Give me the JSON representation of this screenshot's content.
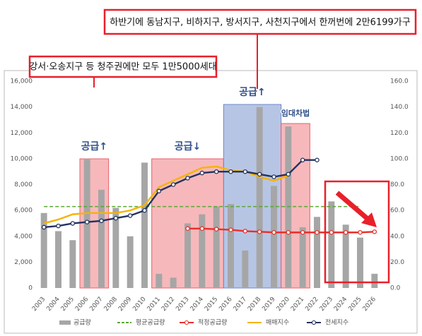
{
  "chart_data": {
    "type": "bar",
    "annotations": [
      "하반기에 동남지구, 비하지구, 방서지구, 사천지구에서 한꺼번에 2만6199가구",
      "강서·오송지구 등 청주권에만 모두 1만5000세대"
    ],
    "categories": [
      "2003",
      "2004",
      "2005",
      "2006",
      "2007",
      "2008",
      "2009",
      "2010",
      "2011",
      "2012",
      "2013",
      "2014",
      "2015",
      "2016",
      "2017",
      "2018",
      "2019",
      "2020",
      "2021",
      "2022",
      "2023",
      "2024",
      "2025",
      "2026"
    ],
    "highlights": [
      {
        "label": "공급↑",
        "from": "2006",
        "to": "2007",
        "color": "#f4a0a4"
      },
      {
        "label": "공급↓",
        "from": "2011",
        "to": "2015",
        "color": "#f4a0a4"
      },
      {
        "label": "공급↑",
        "from": "2016",
        "to": "2019",
        "color": "#9fb2dc"
      },
      {
        "label": "임대차법",
        "from": "2020",
        "to": "2021",
        "color": "#f4a0a4"
      }
    ],
    "series": [
      {
        "name": "공급량",
        "type": "bar",
        "color": "#a6a6a6",
        "values": [
          5800,
          4400,
          3700,
          10000,
          7600,
          6200,
          4000,
          9700,
          1100,
          800,
          5000,
          5700,
          6300,
          6500,
          2900,
          14000,
          7900,
          12500,
          4700,
          5500,
          6700,
          4900,
          3900,
          1100
        ]
      },
      {
        "name": "평균공급량",
        "type": "line",
        "dash": true,
        "color": "#5aa832",
        "values": [
          6300,
          6300,
          6300,
          6300,
          6300,
          6300,
          6300,
          6300,
          6300,
          6300,
          6300,
          6300,
          6300,
          6300,
          6300,
          6300,
          6300,
          6300,
          6300,
          6300,
          6300,
          6300,
          6300,
          null
        ]
      },
      {
        "name": "적정공급량",
        "type": "line",
        "marker": true,
        "color": "#e8302a",
        "values": [
          null,
          null,
          null,
          null,
          null,
          null,
          null,
          null,
          null,
          null,
          4600,
          4600,
          4550,
          4500,
          4400,
          4350,
          4300,
          4300,
          4300,
          4300,
          4300,
          4300,
          4300,
          4350
        ]
      },
      {
        "name": "매매지수",
        "type": "line",
        "axis": "y2",
        "color": "#f5b400",
        "values": [
          50,
          53,
          57,
          58,
          58,
          58,
          60,
          64,
          78,
          83,
          88,
          93,
          94,
          91,
          90,
          86,
          83,
          87,
          null,
          null,
          null,
          null,
          null,
          null
        ]
      },
      {
        "name": "전세지수",
        "type": "line",
        "axis": "y2",
        "marker": true,
        "color": "#23325e",
        "values": [
          47,
          48,
          50,
          51,
          52,
          54,
          56,
          60,
          75,
          80,
          85,
          89,
          90,
          90,
          90,
          88,
          86,
          88,
          99,
          99,
          null,
          null,
          null,
          null
        ]
      }
    ],
    "ylim": [
      0,
      16000
    ],
    "yticks": [
      0,
      {
        "value": 2000,
        "label": "2,000"
      },
      {
        "value": 4000,
        "label": "4,000"
      },
      {
        "value": 6000,
        "label": "6,000"
      },
      {
        "value": 8000,
        "label": "8,000"
      },
      {
        "value": 10000,
        "label": "10,000"
      },
      {
        "value": 12000,
        "label": "12,000"
      },
      {
        "value": 14000,
        "label": "14,000"
      },
      {
        "value": 16000,
        "label": "16,000"
      }
    ],
    "y2lim": [
      0,
      160
    ],
    "y2ticks": [
      {
        "value": 0,
        "label": "0.0"
      },
      {
        "value": 20,
        "label": "20.0"
      },
      {
        "value": 40,
        "label": "40.0"
      },
      {
        "value": 60,
        "label": "60.0"
      },
      {
        "value": 80,
        "label": "80.0"
      },
      {
        "value": 100,
        "label": "100.0"
      },
      {
        "value": 120,
        "label": "120.0"
      },
      {
        "value": 140,
        "label": "140.0"
      },
      {
        "value": 160,
        "label": "160.0"
      }
    ],
    "grid": false
  }
}
